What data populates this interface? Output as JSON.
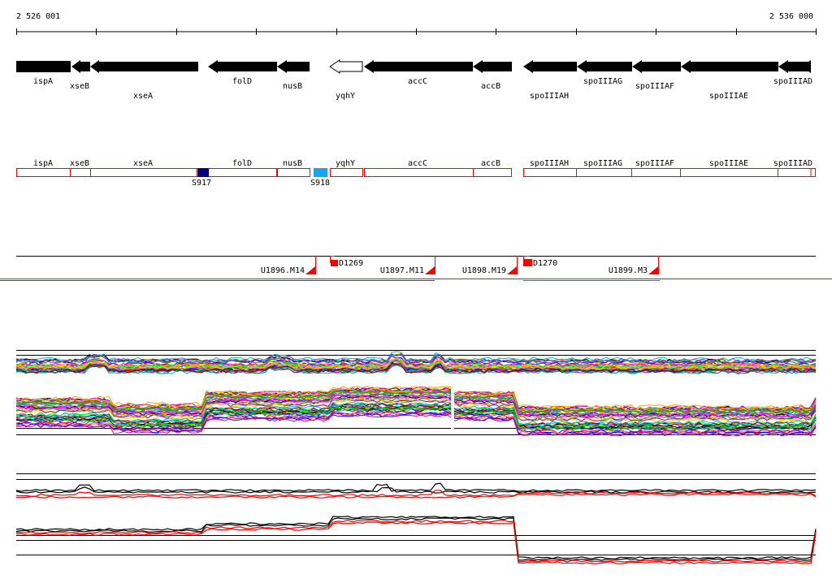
{
  "coordinates": {
    "start": "2 526 001",
    "end": "2 536 000"
  },
  "genes": [
    {
      "label": "ispA",
      "color": "#000000",
      "dir": "left"
    },
    {
      "label": "xseB",
      "color": "#000000",
      "dir": "left"
    },
    {
      "label": "xseA",
      "color": "#000000",
      "dir": "left"
    },
    {
      "label": "folD",
      "color": "#000000",
      "dir": "left"
    },
    {
      "label": "nusB",
      "color": "#000000",
      "dir": "left"
    },
    {
      "label": "yqhY",
      "color": "#ffffff",
      "dir": "left"
    },
    {
      "label": "accC",
      "color": "#000000",
      "dir": "left"
    },
    {
      "label": "accB",
      "color": "#000000",
      "dir": "left"
    },
    {
      "label": "spoIIIAH",
      "color": "#000000",
      "dir": "left"
    },
    {
      "label": "spoIIIAG",
      "color": "#000000",
      "dir": "left"
    },
    {
      "label": "spoIIIAF",
      "color": "#000000",
      "dir": "left"
    },
    {
      "label": "spoIIIAE",
      "color": "#000000",
      "dir": "left"
    },
    {
      "label": "spoIIIAD",
      "color": "#000000",
      "dir": "left"
    }
  ],
  "segments": [
    {
      "label": "ispA"
    },
    {
      "label": "xseB"
    },
    {
      "label": "xseA"
    },
    {
      "label": "folD"
    },
    {
      "label": "nusB"
    },
    {
      "label": "yqhY"
    },
    {
      "label": "accC"
    },
    {
      "label": "accB"
    },
    {
      "label": "spoIIIAH"
    },
    {
      "label": "spoIIIAG"
    },
    {
      "label": "spoIIIAF"
    },
    {
      "label": "spoIIIAE"
    },
    {
      "label": "spoIIIAD"
    }
  ],
  "sites": [
    {
      "label": "S917",
      "color": "#000080"
    },
    {
      "label": "S918",
      "color": "#1aa3ee"
    }
  ],
  "transcripts": [
    {
      "label": "U1896.M14"
    },
    {
      "label": "D1269"
    },
    {
      "label": "U1897.M11"
    },
    {
      "label": "U1898.M19"
    },
    {
      "label": "D1270"
    },
    {
      "label": "U1899.M3"
    }
  ],
  "colors": {
    "segment_border": "#ff0000",
    "transcript_marker": "#ff0000",
    "expr_high": "#000000",
    "expr_low": "#ff0000"
  }
}
